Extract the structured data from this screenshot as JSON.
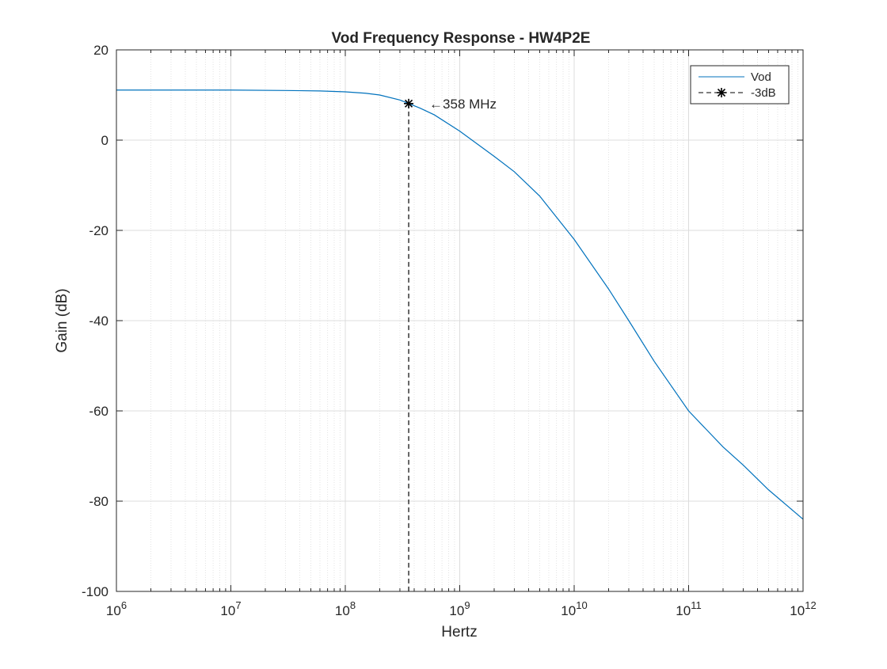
{
  "chart_data": {
    "type": "line",
    "title": "Vod Frequency Response - HW4P2E",
    "xlabel": "Hertz",
    "ylabel": "Gain (dB)",
    "xscale": "log",
    "xlim": [
      1000000,
      1000000000000
    ],
    "ylim": [
      -100,
      20
    ],
    "grid": true,
    "minor_grid": true,
    "legend_position": "top-right",
    "x_ticks": [
      {
        "value": 1000000,
        "base": "10",
        "exp": "6"
      },
      {
        "value": 10000000,
        "base": "10",
        "exp": "7"
      },
      {
        "value": 100000000,
        "base": "10",
        "exp": "8"
      },
      {
        "value": 1000000000,
        "base": "10",
        "exp": "9"
      },
      {
        "value": 10000000000,
        "base": "10",
        "exp": "10"
      },
      {
        "value": 100000000000,
        "base": "10",
        "exp": "11"
      },
      {
        "value": 1000000000000,
        "base": "10",
        "exp": "12"
      }
    ],
    "y_ticks": [
      {
        "value": 20,
        "label": "20"
      },
      {
        "value": 0,
        "label": "0"
      },
      {
        "value": -20,
        "label": "-20"
      },
      {
        "value": -40,
        "label": "-40"
      },
      {
        "value": -60,
        "label": "-60"
      },
      {
        "value": -80,
        "label": "-80"
      },
      {
        "value": -100,
        "label": "-100"
      }
    ],
    "series": [
      {
        "name": "Vod",
        "color": "#0072bd",
        "style": "solid",
        "x": [
          1000000,
          3000000,
          10000000,
          30000000,
          60000000,
          100000000,
          150000000,
          200000000,
          300000000,
          358000000,
          450000000,
          600000000,
          1000000000,
          2000000000,
          3000000000,
          5000000000,
          10000000000,
          20000000000,
          30000000000,
          50000000000,
          100000000000,
          200000000000,
          300000000000,
          500000000000,
          1000000000000
        ],
        "y": [
          11.1,
          11.1,
          11.1,
          11.0,
          10.9,
          10.7,
          10.4,
          10.0,
          8.9,
          8.1,
          7.1,
          5.6,
          2.0,
          -3.6,
          -7.0,
          -12.4,
          -22.0,
          -33.0,
          -40.0,
          -49.0,
          -60.0,
          -68.0,
          -72.0,
          -77.5,
          -84.0
        ]
      },
      {
        "name": "-3dB",
        "color": "#000000",
        "style": "dashed",
        "marker": "asterisk",
        "x": [
          358000000,
          358000000
        ],
        "y": [
          8.1,
          -100
        ]
      }
    ],
    "annotations": [
      {
        "text": "←358 MHz",
        "x": 358000000,
        "y": 8.1
      }
    ]
  }
}
